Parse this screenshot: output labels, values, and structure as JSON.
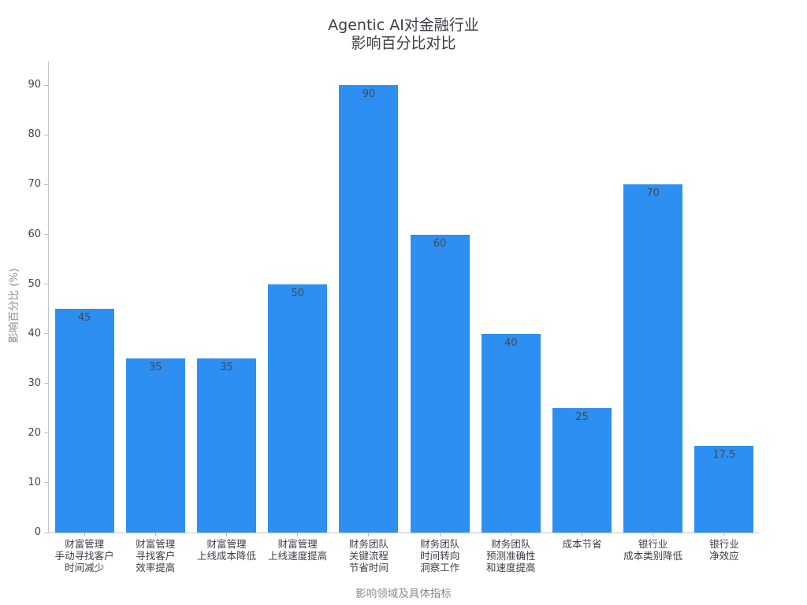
{
  "chart_data": {
    "type": "bar",
    "title_lines": [
      "Agentic AI对金融行业",
      "影响百分比对比"
    ],
    "title": "Agentic AI对金融行业 影响百分比对比",
    "xlabel": "影响领域及具体指标",
    "ylabel": "影响百分比 (%)",
    "categories": [
      [
        "财富管理",
        "手动寻找客户",
        "时间减少"
      ],
      [
        "财富管理",
        "寻找客户",
        "效率提高"
      ],
      [
        "财富管理",
        "上线成本降低"
      ],
      [
        "财富管理",
        "上线速度提高"
      ],
      [
        "财务团队",
        "关键流程",
        "节省时间"
      ],
      [
        "财务团队",
        "时间转向",
        "洞察工作"
      ],
      [
        "财务团队",
        "预测准确性",
        "和速度提高"
      ],
      [
        "成本节省"
      ],
      [
        "银行业",
        "成本类别降低"
      ],
      [
        "银行业",
        "净效应"
      ]
    ],
    "values": [
      45,
      35,
      35,
      50,
      90,
      60,
      40,
      25,
      70,
      17.5
    ],
    "value_labels": [
      "45",
      "35",
      "35",
      "50",
      "90",
      "60",
      "40",
      "25",
      "70",
      "17.5"
    ],
    "yticks": [
      0,
      10,
      20,
      30,
      40,
      50,
      60,
      70,
      80,
      90
    ],
    "ylim": [
      0,
      94.8
    ],
    "grid": false,
    "legend": "none",
    "colors": {
      "bar": "#2E8FF2",
      "background": "#ffffff",
      "axis_line": "#c2c6ca",
      "tick_text": "#3d434a",
      "category_text": "#3a3f45",
      "bar_label_text": "#3f4a54",
      "axis_title_text": "#878d93",
      "title_text": "#3b4046"
    }
  }
}
